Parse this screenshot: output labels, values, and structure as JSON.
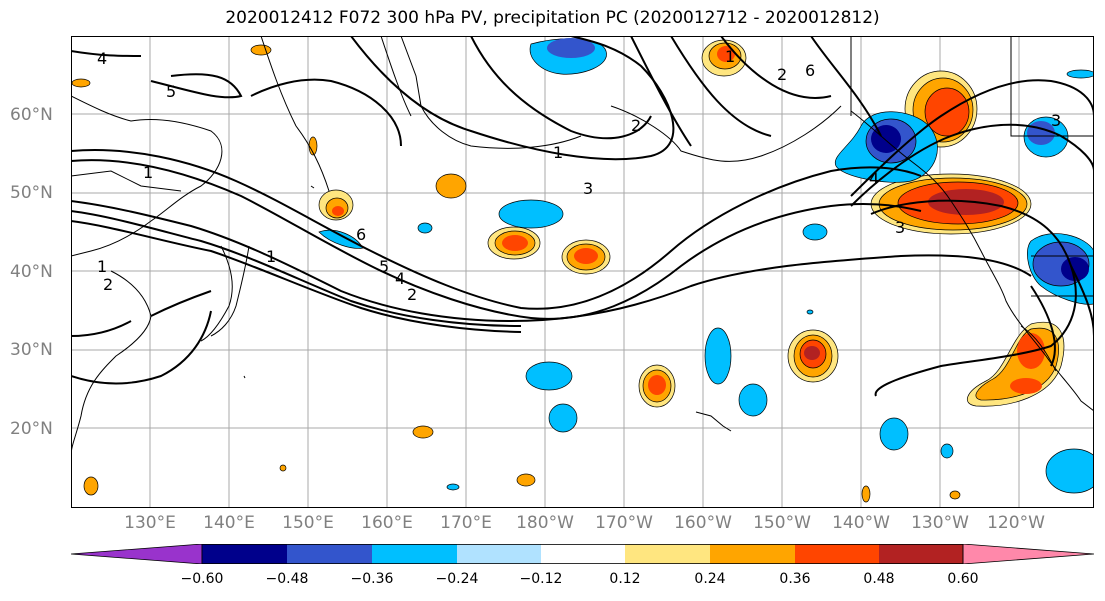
{
  "title": "2020012412 F072 300 hPa PV, precipitation PC (2020012712 - 2020012812)",
  "lat_labels": [
    "60°N",
    "50°N",
    "40°N",
    "30°N",
    "20°N"
  ],
  "lon_labels": [
    "130°E",
    "140°E",
    "150°E",
    "160°E",
    "170°E",
    "180°W",
    "170°W",
    "160°W",
    "150°W",
    "140°W",
    "130°W",
    "120°W"
  ],
  "pv_contour_labels": [
    "1",
    "2",
    "3",
    "4",
    "5",
    "6"
  ],
  "colorbar": {
    "ticks": [
      "−0.60",
      "−0.48",
      "−0.36",
      "−0.24",
      "−0.12",
      "0.12",
      "0.24",
      "0.36",
      "0.48",
      "0.60"
    ],
    "colors": [
      "#9933cc",
      "#00008b",
      "#3355cc",
      "#00bfff",
      "#b0e2ff",
      "#ffffff",
      "#ffe680",
      "#ffa500",
      "#ff4500",
      "#b22222",
      "#ff88aa"
    ]
  }
}
